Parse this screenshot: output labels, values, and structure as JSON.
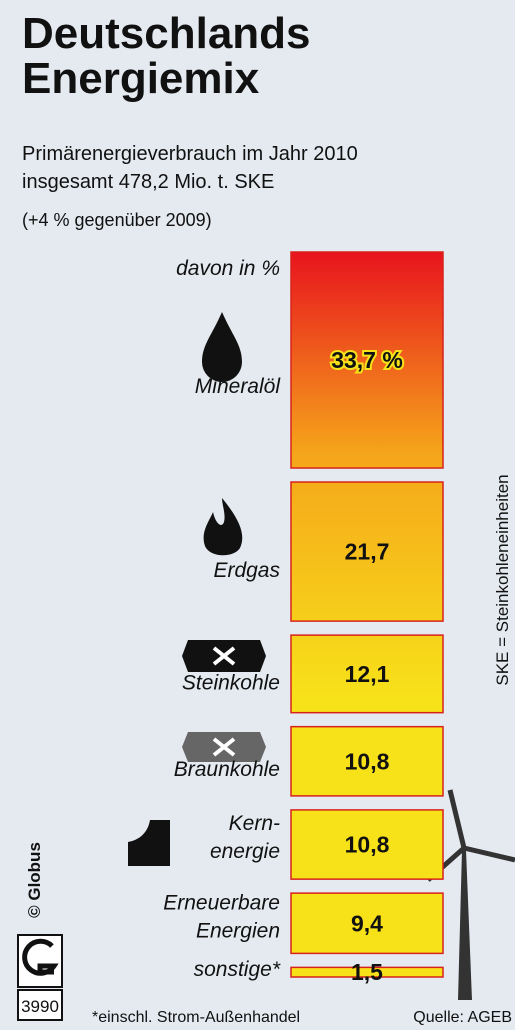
{
  "chart_data": {
    "type": "stacked-column",
    "title": "Deutschlands\nEnergiemix",
    "subtitle": "Primärenergieverbrauch im Jahr 2010\ninsgesamt 478,2 Mio. t. SKE",
    "change_note": "(+4 % gegenüber 2009)",
    "unit_label": "davon in %",
    "side_note": "SKE = Steinkohleneinheiten",
    "credit": "© Globus",
    "code": "3990",
    "footnote": "*einschl. Strom-Außenhandel",
    "source": "Quelle: AGEB",
    "categories": [
      "Mineralöl",
      "Erdgas",
      "Steinkohle",
      "Braunkohle",
      "Kern-\nenergie",
      "Erneuerbare\nEnergien",
      "sonstige*"
    ],
    "values": [
      33.7,
      21.7,
      12.1,
      10.8,
      10.8,
      9.4,
      1.5
    ],
    "value_labels": [
      "33,7 %",
      "21,7",
      "12,1",
      "10,8",
      "10,8",
      "9,4",
      "1,5"
    ],
    "colors": [
      "#e8141e",
      "#f7e21a"
    ]
  }
}
